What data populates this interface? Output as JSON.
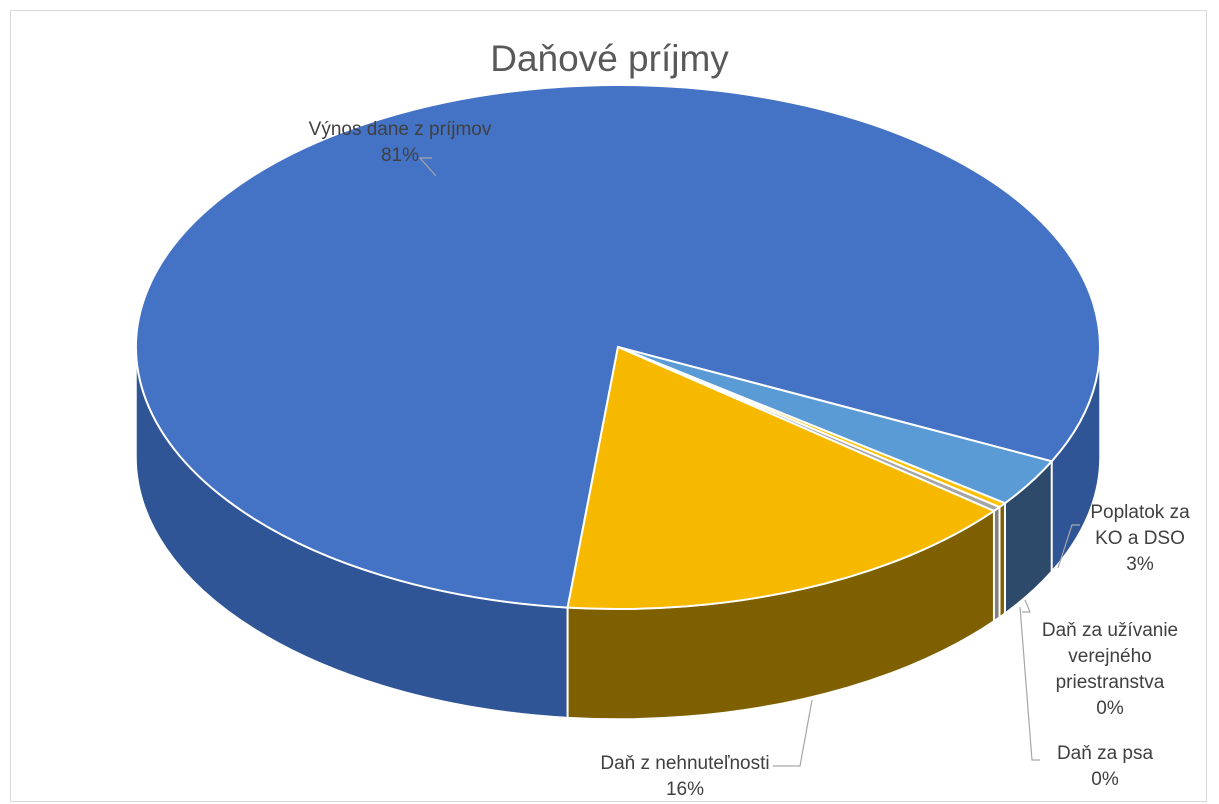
{
  "chart_data": {
    "type": "pie",
    "title": "Daňové príjmy",
    "categories": [
      "Výnos dane z príjmov",
      "Daň z nehnuteľnosti",
      "Daň za užívanie verejného priestranstva",
      "Daň za psa",
      "Poplatok za KO a DSO"
    ],
    "values": [
      81,
      16,
      0,
      0,
      3
    ],
    "labels": [
      {
        "name": "Výnos dane z príjmov",
        "percent": "81%"
      },
      {
        "name": "Daň z nehnuteľnosti",
        "percent": "16%"
      },
      {
        "name": "Daň za užívanie verejného priestranstva",
        "percent": "0%"
      },
      {
        "name": "Daň za psa",
        "percent": "0%"
      },
      {
        "name": "Poplatok za KO a DSO",
        "percent": "3%"
      }
    ],
    "colors": [
      "#4472c4",
      "#f7b900",
      "#a5a5a5",
      "#ffc000",
      "#5b9bd5"
    ],
    "legend": "none",
    "style": "3d-pie"
  }
}
